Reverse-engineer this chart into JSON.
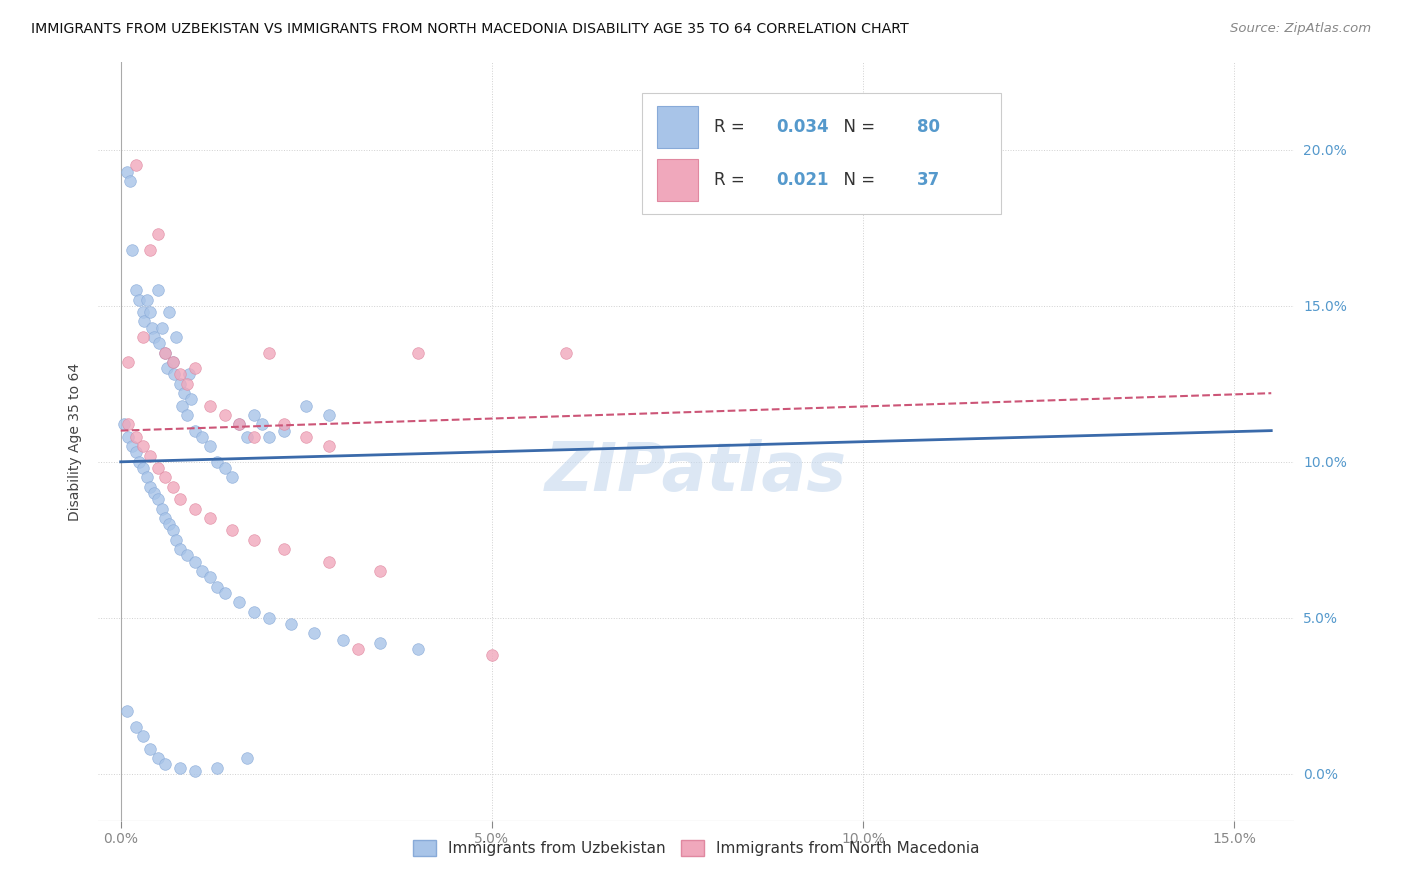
{
  "title": "IMMIGRANTS FROM UZBEKISTAN VS IMMIGRANTS FROM NORTH MACEDONIA DISABILITY AGE 35 TO 64 CORRELATION CHART",
  "source": "Source: ZipAtlas.com",
  "ylabel": "Disability Age 35 to 64",
  "legend_label1": "Immigrants from Uzbekistan",
  "legend_label2": "Immigrants from North Macedonia",
  "R1": "0.034",
  "N1": "80",
  "R2": "0.021",
  "N2": "37",
  "color1": "#a8c4e8",
  "color2": "#f0a8bc",
  "edge1": "#88aad8",
  "edge2": "#e088a0",
  "line_color1": "#3a6aaa",
  "line_color2": "#cc5577",
  "xlim": [
    -0.003,
    0.158
  ],
  "ylim": [
    -0.015,
    0.228
  ],
  "xticks": [
    0.0,
    0.05,
    0.1,
    0.15
  ],
  "yticks": [
    0.0,
    0.05,
    0.1,
    0.15,
    0.2
  ],
  "tick_color": "#5599cc",
  "watermark": "ZIPatlas",
  "watermark_color": "#c5d8ee",
  "uz_x": [
    0.0008,
    0.0012,
    0.0015,
    0.002,
    0.0025,
    0.003,
    0.0032,
    0.0035,
    0.004,
    0.0042,
    0.0045,
    0.005,
    0.0052,
    0.0055,
    0.006,
    0.0062,
    0.0065,
    0.007,
    0.0072,
    0.0075,
    0.008,
    0.0082,
    0.0085,
    0.009,
    0.0092,
    0.0095,
    0.01,
    0.011,
    0.012,
    0.013,
    0.014,
    0.015,
    0.016,
    0.017,
    0.018,
    0.019,
    0.02,
    0.022,
    0.025,
    0.028,
    0.0005,
    0.001,
    0.0015,
    0.002,
    0.0025,
    0.003,
    0.0035,
    0.004,
    0.0045,
    0.005,
    0.0055,
    0.006,
    0.0065,
    0.007,
    0.0075,
    0.008,
    0.009,
    0.01,
    0.011,
    0.012,
    0.013,
    0.014,
    0.016,
    0.018,
    0.02,
    0.023,
    0.026,
    0.03,
    0.035,
    0.04,
    0.0008,
    0.002,
    0.003,
    0.004,
    0.005,
    0.006,
    0.008,
    0.01,
    0.013,
    0.017
  ],
  "uz_y": [
    0.193,
    0.19,
    0.168,
    0.155,
    0.152,
    0.148,
    0.145,
    0.152,
    0.148,
    0.143,
    0.14,
    0.155,
    0.138,
    0.143,
    0.135,
    0.13,
    0.148,
    0.132,
    0.128,
    0.14,
    0.125,
    0.118,
    0.122,
    0.115,
    0.128,
    0.12,
    0.11,
    0.108,
    0.105,
    0.1,
    0.098,
    0.095,
    0.112,
    0.108,
    0.115,
    0.112,
    0.108,
    0.11,
    0.118,
    0.115,
    0.112,
    0.108,
    0.105,
    0.103,
    0.1,
    0.098,
    0.095,
    0.092,
    0.09,
    0.088,
    0.085,
    0.082,
    0.08,
    0.078,
    0.075,
    0.072,
    0.07,
    0.068,
    0.065,
    0.063,
    0.06,
    0.058,
    0.055,
    0.052,
    0.05,
    0.048,
    0.045,
    0.043,
    0.042,
    0.04,
    0.02,
    0.015,
    0.012,
    0.008,
    0.005,
    0.003,
    0.002,
    0.001,
    0.002,
    0.005
  ],
  "mac_x": [
    0.001,
    0.002,
    0.003,
    0.004,
    0.005,
    0.006,
    0.007,
    0.008,
    0.009,
    0.01,
    0.012,
    0.014,
    0.016,
    0.018,
    0.02,
    0.022,
    0.025,
    0.028,
    0.032,
    0.04,
    0.001,
    0.002,
    0.003,
    0.004,
    0.005,
    0.006,
    0.007,
    0.008,
    0.01,
    0.012,
    0.015,
    0.018,
    0.022,
    0.028,
    0.035,
    0.05,
    0.06
  ],
  "mac_y": [
    0.132,
    0.195,
    0.14,
    0.168,
    0.173,
    0.135,
    0.132,
    0.128,
    0.125,
    0.13,
    0.118,
    0.115,
    0.112,
    0.108,
    0.135,
    0.112,
    0.108,
    0.105,
    0.04,
    0.135,
    0.112,
    0.108,
    0.105,
    0.102,
    0.098,
    0.095,
    0.092,
    0.088,
    0.085,
    0.082,
    0.078,
    0.075,
    0.072,
    0.068,
    0.065,
    0.038,
    0.135
  ]
}
